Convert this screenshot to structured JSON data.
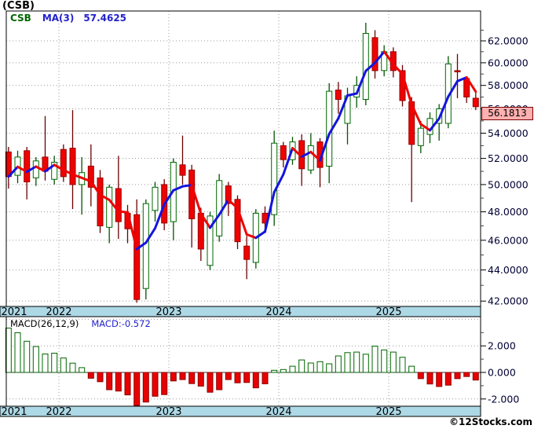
{
  "header": {
    "title": "(CSB)"
  },
  "legend": {
    "symbol": "CSB",
    "ma_label": "MA(3)",
    "ma_value": "57.4625"
  },
  "macd_header": {
    "label": "MACD(26,12,9)",
    "value_label": "MACD:-0.572"
  },
  "price_box": {
    "value": "56.1813"
  },
  "footer": {
    "credit": "©12Stocks.com"
  },
  "colors": {
    "up_outline": "#006600",
    "up_fill": "#FFFFFF",
    "up_wick": "#005500",
    "down_fill": "#EE0202",
    "down_edge": "#990000",
    "down_wick": "#6B0000",
    "ma_up": "#1414DD",
    "ma_down": "#EE0404",
    "band_bg": "#ADD8E6",
    "grid": "#999999",
    "axis_text": "#000033",
    "year_text": "#000000",
    "border": "#000000",
    "macd_pos_outline": "#006600",
    "macd_pos_fill": "#FFFFFF",
    "macd_neg_fill": "#E80000",
    "macd_neg_edge": "#8B0000"
  },
  "chart_data": {
    "type": "candlestick-with-macd",
    "title": "(CSB)",
    "price_scale": "log",
    "price_axis": {
      "min": 42,
      "max": 62,
      "step": 2,
      "tick_values": [
        62,
        60,
        58,
        56,
        54,
        52,
        50,
        48,
        46,
        44,
        42
      ],
      "tick_labels": [
        "62.0000",
        "60.0000",
        "58.0000",
        "56.0000",
        "54.0000",
        "52.0000",
        "50.0000",
        "48.0000",
        "46.0000",
        "44.0000",
        "42.0000"
      ],
      "last_price": 56.1813
    },
    "macd_axis": {
      "tick_values": [
        2,
        0,
        -2
      ],
      "tick_labels": [
        "2.000",
        "0.000",
        "-2.000"
      ]
    },
    "years": [
      {
        "label": "2021",
        "jan_month_index": null
      },
      {
        "label": "2022",
        "jan_month_index": 6
      },
      {
        "label": "2023",
        "jan_month_index": 18
      },
      {
        "label": "2024",
        "jan_month_index": 30
      },
      {
        "label": "2025",
        "jan_month_index": 42
      }
    ],
    "months": [
      {
        "d": "2021-07",
        "o": 52.5,
        "h": 52.9,
        "l": 49.7,
        "c": 50.6,
        "macd": 3.34
      },
      {
        "d": "2021-08",
        "o": 50.7,
        "h": 52.6,
        "l": 50.1,
        "c": 52.1,
        "macd": 2.99
      },
      {
        "d": "2021-09",
        "o": 52.6,
        "h": 52.9,
        "l": 48.9,
        "c": 50.2,
        "macd": 2.35
      },
      {
        "d": "2021-10",
        "o": 50.5,
        "h": 52.1,
        "l": 49.9,
        "c": 51.8,
        "macd": 1.95
      },
      {
        "d": "2021-11",
        "o": 52.1,
        "h": 55.4,
        "l": 50.3,
        "c": 51.0,
        "macd": 1.39
      },
      {
        "d": "2021-12",
        "o": 50.4,
        "h": 52.2,
        "l": 50.0,
        "c": 51.7,
        "macd": 1.45
      },
      {
        "d": "2022-01",
        "o": 52.7,
        "h": 53.1,
        "l": 50.2,
        "c": 50.6,
        "macd": 1.09
      },
      {
        "d": "2022-02",
        "o": 52.8,
        "h": 55.9,
        "l": 48.2,
        "c": 50.0,
        "macd": 0.7
      },
      {
        "d": "2022-03",
        "o": 50.0,
        "h": 52.1,
        "l": 47.8,
        "c": 50.9,
        "macd": 0.36
      },
      {
        "d": "2022-04",
        "o": 51.4,
        "h": 53.1,
        "l": 48.4,
        "c": 49.8,
        "macd": -0.44
      },
      {
        "d": "2022-05",
        "o": 50.5,
        "h": 51.1,
        "l": 46.5,
        "c": 47.0,
        "macd": -0.7
      },
      {
        "d": "2022-06",
        "o": 46.9,
        "h": 50.0,
        "l": 45.8,
        "c": 49.8,
        "macd": -1.3
      },
      {
        "d": "2022-07",
        "o": 49.7,
        "h": 52.2,
        "l": 46.1,
        "c": 47.3,
        "macd": -1.4
      },
      {
        "d": "2022-08",
        "o": 47.9,
        "h": 48.5,
        "l": 45.8,
        "c": 46.8,
        "macd": -1.69
      },
      {
        "d": "2022-09",
        "o": 47.8,
        "h": 48.9,
        "l": 41.9,
        "c": 42.1,
        "macd": -2.63
      },
      {
        "d": "2022-10",
        "o": 42.8,
        "h": 48.9,
        "l": 42.1,
        "c": 48.6,
        "macd": -2.23
      },
      {
        "d": "2022-11",
        "o": 48.1,
        "h": 50.2,
        "l": 47.3,
        "c": 49.8,
        "macd": -1.79
      },
      {
        "d": "2022-12",
        "o": 50.0,
        "h": 50.4,
        "l": 46.7,
        "c": 47.2,
        "macd": -1.67
      },
      {
        "d": "2023-01",
        "o": 47.3,
        "h": 52.0,
        "l": 46.0,
        "c": 51.7,
        "macd": -0.64
      },
      {
        "d": "2023-02",
        "o": 51.5,
        "h": 53.8,
        "l": 50.0,
        "c": 50.7,
        "macd": -0.54
      },
      {
        "d": "2023-03",
        "o": 51.1,
        "h": 51.5,
        "l": 45.5,
        "c": 47.5,
        "macd": -0.84
      },
      {
        "d": "2023-04",
        "o": 47.9,
        "h": 48.3,
        "l": 44.6,
        "c": 45.4,
        "macd": -1.03
      },
      {
        "d": "2023-05",
        "o": 44.3,
        "h": 48.0,
        "l": 44.0,
        "c": 47.7,
        "macd": -1.49
      },
      {
        "d": "2023-06",
        "o": 46.3,
        "h": 50.8,
        "l": 45.9,
        "c": 50.3,
        "macd": -1.3
      },
      {
        "d": "2023-07",
        "o": 49.9,
        "h": 50.2,
        "l": 47.7,
        "c": 48.6,
        "macd": -0.54
      },
      {
        "d": "2023-08",
        "o": 48.9,
        "h": 49.2,
        "l": 45.4,
        "c": 45.9,
        "macd": -0.78
      },
      {
        "d": "2023-09",
        "o": 45.6,
        "h": 46.3,
        "l": 43.4,
        "c": 44.7,
        "macd": -0.76
      },
      {
        "d": "2023-10",
        "o": 44.5,
        "h": 48.2,
        "l": 44.1,
        "c": 47.9,
        "macd": -1.16
      },
      {
        "d": "2023-11",
        "o": 47.9,
        "h": 48.4,
        "l": 46.5,
        "c": 47.2,
        "macd": -0.86
      },
      {
        "d": "2023-12",
        "o": 47.8,
        "h": 54.2,
        "l": 47.0,
        "c": 53.2,
        "macd": 0.16
      },
      {
        "d": "2024-01",
        "o": 53.0,
        "h": 53.3,
        "l": 51.3,
        "c": 51.9,
        "macd": 0.22
      },
      {
        "d": "2024-02",
        "o": 51.9,
        "h": 53.7,
        "l": 51.5,
        "c": 53.3,
        "macd": 0.47
      },
      {
        "d": "2024-03",
        "o": 53.4,
        "h": 53.9,
        "l": 49.9,
        "c": 51.2,
        "macd": 0.94
      },
      {
        "d": "2024-04",
        "o": 51.1,
        "h": 54.0,
        "l": 50.8,
        "c": 53.0,
        "macd": 0.71
      },
      {
        "d": "2024-05",
        "o": 53.3,
        "h": 53.6,
        "l": 49.8,
        "c": 51.3,
        "macd": 0.81
      },
      {
        "d": "2024-06",
        "o": 51.4,
        "h": 58.2,
        "l": 50.1,
        "c": 57.5,
        "macd": 0.65
      },
      {
        "d": "2024-07",
        "o": 57.6,
        "h": 58.3,
        "l": 55.6,
        "c": 56.8,
        "macd": 1.24
      },
      {
        "d": "2024-08",
        "o": 54.8,
        "h": 57.8,
        "l": 53.1,
        "c": 57.1,
        "macd": 1.49
      },
      {
        "d": "2024-09",
        "o": 57.0,
        "h": 58.8,
        "l": 56.1,
        "c": 58.0,
        "macd": 1.53
      },
      {
        "d": "2024-10",
        "o": 56.8,
        "h": 63.7,
        "l": 56.3,
        "c": 62.7,
        "macd": 1.37
      },
      {
        "d": "2024-11",
        "o": 62.3,
        "h": 63.0,
        "l": 58.6,
        "c": 59.3,
        "macd": 1.98
      },
      {
        "d": "2024-12",
        "o": 59.3,
        "h": 61.6,
        "l": 58.8,
        "c": 61.0,
        "macd": 1.69
      },
      {
        "d": "2025-01",
        "o": 61.0,
        "h": 61.4,
        "l": 58.7,
        "c": 59.3,
        "macd": 1.53
      },
      {
        "d": "2025-02",
        "o": 59.3,
        "h": 59.8,
        "l": 56.2,
        "c": 56.7,
        "macd": 1.14
      },
      {
        "d": "2025-03",
        "o": 56.6,
        "h": 57.0,
        "l": 48.7,
        "c": 53.1,
        "macd": 0.47
      },
      {
        "d": "2025-04",
        "o": 53.0,
        "h": 55.0,
        "l": 52.4,
        "c": 54.4,
        "macd": -0.47
      },
      {
        "d": "2025-05",
        "o": 53.9,
        "h": 55.7,
        "l": 53.2,
        "c": 55.2,
        "macd": -0.87
      },
      {
        "d": "2025-06",
        "o": 54.8,
        "h": 56.4,
        "l": 53.4,
        "c": 56.0,
        "macd": -1.06
      },
      {
        "d": "2025-07",
        "o": 54.8,
        "h": 60.6,
        "l": 54.4,
        "c": 59.9,
        "macd": -0.96
      },
      {
        "d": "2025-08",
        "o": 59.3,
        "h": 60.8,
        "l": 56.9,
        "c": 59.2,
        "macd": -0.47
      },
      {
        "d": "2025-09",
        "o": 58.6,
        "h": 58.8,
        "l": 56.5,
        "c": 57.0,
        "macd": -0.31
      },
      {
        "d": "2025-10",
        "o": 56.9,
        "h": 57.6,
        "l": 55.9,
        "c": 56.1813,
        "macd": -0.572
      }
    ]
  }
}
